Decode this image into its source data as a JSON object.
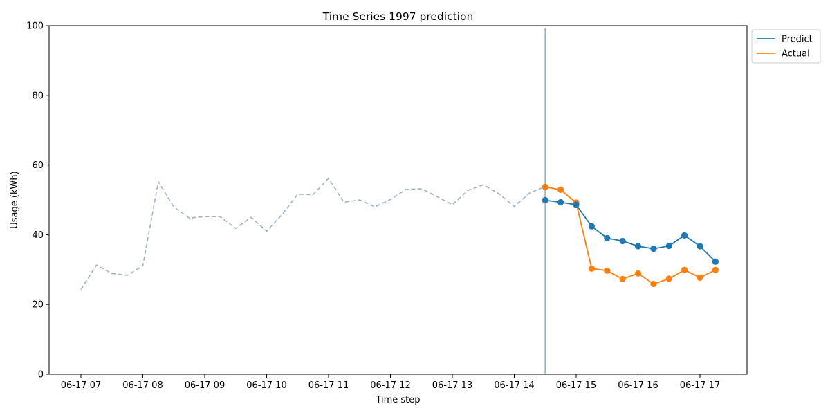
{
  "chart_data": {
    "type": "line",
    "title": "Time Series 1997 prediction",
    "xlabel": "Time step",
    "ylabel": "Usage (kWh)",
    "ylim": [
      0,
      100
    ],
    "yticks": [
      0,
      20,
      40,
      60,
      80,
      100
    ],
    "xticks": [
      "06-17 07",
      "06-17 08",
      "06-17 09",
      "06-17 10",
      "06-17 11",
      "06-17 12",
      "06-17 13",
      "06-17 14",
      "06-17 15",
      "06-17 16",
      "06-17 17"
    ],
    "history": {
      "color": "#9fb2c8",
      "style": "dashed",
      "x": [
        "06-17 07:00",
        "06-17 07:15",
        "06-17 07:30",
        "06-17 07:45",
        "06-17 08:00",
        "06-17 08:15",
        "06-17 08:30",
        "06-17 08:45",
        "06-17 09:00",
        "06-17 09:15",
        "06-17 09:30",
        "06-17 09:45",
        "06-17 10:00",
        "06-17 10:15",
        "06-17 10:30",
        "06-17 10:45",
        "06-17 11:00",
        "06-17 11:15",
        "06-17 11:30",
        "06-17 11:45",
        "06-17 12:00",
        "06-17 12:15",
        "06-17 12:30",
        "06-17 12:45",
        "06-17 13:00",
        "06-17 13:15",
        "06-17 13:30",
        "06-17 13:45",
        "06-17 14:00",
        "06-17 14:15",
        "06-17 14:30"
      ],
      "values": [
        24.3,
        31.3,
        28.9,
        28.4,
        31.1,
        55.2,
        48.0,
        44.8,
        45.2,
        45.2,
        41.8,
        45.0,
        41.0,
        45.8,
        51.6,
        51.5,
        56.2,
        49.3,
        50.0,
        48.0,
        50.1,
        53.0,
        53.2,
        51.0,
        48.6,
        52.7,
        54.3,
        51.8,
        48.1,
        52.0,
        53.8
      ]
    },
    "forecast_start": "06-17 14:30",
    "series": [
      {
        "name": "Predict",
        "color": "#1f77b4",
        "x": [
          "06-17 14:30",
          "06-17 14:45",
          "06-17 15:00",
          "06-17 15:15",
          "06-17 15:30",
          "06-17 15:45",
          "06-17 16:00",
          "06-17 16:15",
          "06-17 16:30",
          "06-17 16:45",
          "06-17 17:00",
          "06-17 17:15"
        ],
        "values": [
          49.9,
          49.3,
          48.6,
          42.4,
          39.0,
          38.2,
          36.7,
          36.0,
          36.8,
          39.8,
          36.7,
          32.3
        ]
      },
      {
        "name": "Actual",
        "color": "#ff7f0e",
        "x": [
          "06-17 14:30",
          "06-17 14:45",
          "06-17 15:00",
          "06-17 15:15",
          "06-17 15:30",
          "06-17 15:45",
          "06-17 16:00",
          "06-17 16:15",
          "06-17 16:30",
          "06-17 16:45",
          "06-17 17:00",
          "06-17 17:15"
        ],
        "values": [
          53.7,
          52.9,
          49.2,
          30.3,
          29.7,
          27.3,
          28.9,
          25.9,
          27.4,
          29.9,
          27.7,
          29.9
        ]
      }
    ],
    "legend_position": "upper right, outside plot",
    "grid": false
  }
}
